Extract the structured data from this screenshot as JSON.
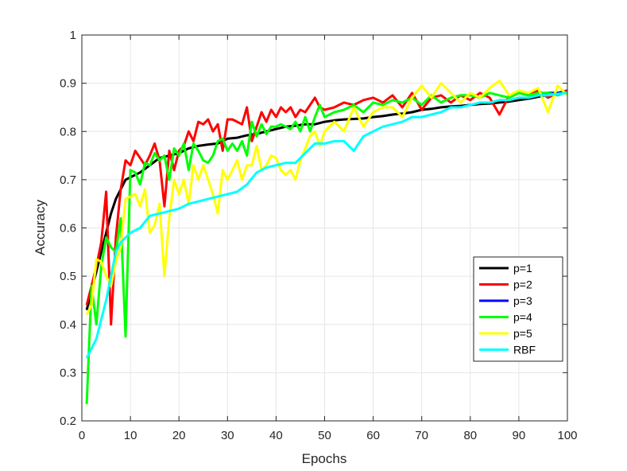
{
  "chart_data": {
    "type": "line",
    "xlabel": "Epochs",
    "ylabel": "Accuracy",
    "xlim": [
      0,
      100
    ],
    "ylim": [
      0.2,
      1.0
    ],
    "xticks": [
      0,
      10,
      20,
      30,
      40,
      50,
      60,
      70,
      80,
      90,
      100
    ],
    "yticks": [
      0.2,
      0.3,
      0.4,
      0.5,
      0.6,
      0.7,
      0.8,
      0.9,
      1.0
    ],
    "xtick_labels": [
      "0",
      "10",
      "20",
      "30",
      "40",
      "50",
      "60",
      "70",
      "80",
      "90",
      "100"
    ],
    "ytick_labels": [
      "0.2",
      "0.3",
      "0.4",
      "0.5",
      "0.6",
      "0.7",
      "0.8",
      "0.9",
      "1"
    ],
    "grid": true,
    "legend_position": "right",
    "series": [
      {
        "name": "p=1",
        "color": "#000000",
        "x": [
          1,
          2,
          3,
          4,
          5,
          6,
          7,
          8,
          9,
          10,
          12,
          14,
          16,
          18,
          20,
          22,
          24,
          26,
          28,
          30,
          32,
          34,
          36,
          38,
          40,
          42,
          44,
          46,
          48,
          50,
          52,
          54,
          56,
          58,
          60,
          62,
          64,
          66,
          68,
          70,
          72,
          74,
          76,
          78,
          80,
          82,
          84,
          86,
          88,
          90,
          92,
          94,
          96,
          98,
          100
        ],
        "y": [
          0.43,
          0.47,
          0.51,
          0.55,
          0.59,
          0.63,
          0.66,
          0.68,
          0.7,
          0.705,
          0.715,
          0.73,
          0.745,
          0.75,
          0.755,
          0.765,
          0.77,
          0.773,
          0.775,
          0.785,
          0.787,
          0.792,
          0.795,
          0.8,
          0.805,
          0.81,
          0.812,
          0.815,
          0.815,
          0.82,
          0.823,
          0.825,
          0.826,
          0.827,
          0.83,
          0.832,
          0.835,
          0.837,
          0.84,
          0.845,
          0.847,
          0.85,
          0.852,
          0.853,
          0.855,
          0.857,
          0.858,
          0.86,
          0.862,
          0.865,
          0.868,
          0.872,
          0.876,
          0.88,
          0.88
        ]
      },
      {
        "name": "p=2",
        "color": "#ff0000",
        "x": [
          1,
          2,
          3,
          4,
          5,
          6,
          7,
          8,
          9,
          10,
          11,
          12,
          13,
          14,
          15,
          16,
          17,
          18,
          19,
          20,
          21,
          22,
          23,
          24,
          25,
          26,
          27,
          28,
          29,
          30,
          31,
          32,
          33,
          34,
          35,
          36,
          37,
          38,
          39,
          40,
          41,
          42,
          43,
          44,
          45,
          46,
          47,
          48,
          49,
          50,
          52,
          54,
          56,
          58,
          60,
          62,
          64,
          66,
          68,
          70,
          72,
          74,
          76,
          78,
          80,
          82,
          84,
          86,
          88,
          90,
          92,
          94,
          96,
          98,
          100
        ],
        "y": [
          0.44,
          0.48,
          0.52,
          0.57,
          0.675,
          0.4,
          0.58,
          0.68,
          0.74,
          0.73,
          0.76,
          0.745,
          0.73,
          0.75,
          0.775,
          0.74,
          0.645,
          0.76,
          0.72,
          0.76,
          0.77,
          0.8,
          0.78,
          0.82,
          0.815,
          0.825,
          0.8,
          0.815,
          0.76,
          0.825,
          0.825,
          0.82,
          0.815,
          0.85,
          0.78,
          0.81,
          0.84,
          0.82,
          0.845,
          0.83,
          0.85,
          0.84,
          0.85,
          0.83,
          0.845,
          0.84,
          0.855,
          0.87,
          0.85,
          0.845,
          0.85,
          0.86,
          0.855,
          0.865,
          0.87,
          0.86,
          0.875,
          0.85,
          0.88,
          0.845,
          0.87,
          0.875,
          0.86,
          0.875,
          0.865,
          0.88,
          0.87,
          0.835,
          0.875,
          0.88,
          0.875,
          0.885,
          0.87,
          0.88,
          0.885
        ]
      },
      {
        "name": "p=3",
        "color": "#0000ff",
        "x": [
          94,
          96,
          98,
          100
        ],
        "y": [
          0.875,
          0.88,
          0.88,
          0.882
        ]
      },
      {
        "name": "p=4",
        "color": "#00ff00",
        "x": [
          1,
          2,
          3,
          4,
          5,
          6,
          7,
          8,
          9,
          10,
          11,
          12,
          13,
          14,
          15,
          16,
          17,
          18,
          19,
          20,
          21,
          22,
          23,
          24,
          25,
          26,
          27,
          28,
          29,
          30,
          31,
          32,
          33,
          34,
          35,
          36,
          37,
          38,
          39,
          40,
          41,
          42,
          43,
          44,
          45,
          46,
          47,
          48,
          49,
          50,
          52,
          54,
          56,
          58,
          60,
          62,
          64,
          66,
          68,
          70,
          72,
          74,
          76,
          78,
          80,
          82,
          84,
          86,
          88,
          90,
          92,
          94,
          96,
          98,
          100
        ],
        "y": [
          0.235,
          0.48,
          0.4,
          0.52,
          0.58,
          0.56,
          0.55,
          0.62,
          0.375,
          0.72,
          0.715,
          0.69,
          0.735,
          0.73,
          0.755,
          0.74,
          0.75,
          0.7,
          0.765,
          0.75,
          0.775,
          0.72,
          0.775,
          0.76,
          0.74,
          0.735,
          0.75,
          0.78,
          0.785,
          0.76,
          0.775,
          0.76,
          0.78,
          0.75,
          0.82,
          0.79,
          0.815,
          0.795,
          0.81,
          0.81,
          0.815,
          0.81,
          0.805,
          0.82,
          0.8,
          0.83,
          0.8,
          0.83,
          0.855,
          0.83,
          0.84,
          0.845,
          0.855,
          0.84,
          0.86,
          0.855,
          0.865,
          0.86,
          0.87,
          0.855,
          0.875,
          0.86,
          0.87,
          0.875,
          0.875,
          0.87,
          0.88,
          0.875,
          0.87,
          0.88,
          0.875,
          0.88,
          0.88,
          0.875,
          0.882
        ]
      },
      {
        "name": "p=5",
        "color": "#ffff00",
        "x": [
          1,
          2,
          3,
          4,
          5,
          6,
          7,
          8,
          9,
          10,
          11,
          12,
          13,
          14,
          15,
          16,
          17,
          18,
          19,
          20,
          21,
          22,
          23,
          24,
          25,
          26,
          27,
          28,
          29,
          30,
          31,
          32,
          33,
          34,
          35,
          36,
          37,
          38,
          39,
          40,
          41,
          42,
          43,
          44,
          45,
          46,
          47,
          48,
          49,
          50,
          52,
          54,
          56,
          58,
          60,
          62,
          64,
          66,
          68,
          70,
          72,
          74,
          76,
          78,
          80,
          82,
          84,
          86,
          88,
          90,
          92,
          94,
          96,
          98,
          100
        ],
        "y": [
          0.42,
          0.44,
          0.535,
          0.53,
          0.5,
          0.48,
          0.53,
          0.56,
          0.66,
          0.665,
          0.67,
          0.645,
          0.68,
          0.59,
          0.605,
          0.65,
          0.5,
          0.62,
          0.7,
          0.67,
          0.7,
          0.65,
          0.73,
          0.7,
          0.73,
          0.7,
          0.67,
          0.63,
          0.72,
          0.7,
          0.72,
          0.74,
          0.7,
          0.73,
          0.73,
          0.77,
          0.72,
          0.73,
          0.75,
          0.745,
          0.72,
          0.71,
          0.72,
          0.7,
          0.74,
          0.765,
          0.79,
          0.8,
          0.77,
          0.8,
          0.82,
          0.8,
          0.85,
          0.81,
          0.84,
          0.85,
          0.85,
          0.83,
          0.87,
          0.895,
          0.87,
          0.9,
          0.88,
          0.86,
          0.88,
          0.87,
          0.89,
          0.905,
          0.875,
          0.885,
          0.88,
          0.89,
          0.84,
          0.895,
          0.875
        ]
      },
      {
        "name": "RBF",
        "color": "#00ffff",
        "x": [
          1,
          2,
          3,
          4,
          5,
          6,
          7,
          8,
          9,
          10,
          12,
          14,
          16,
          18,
          20,
          22,
          24,
          26,
          28,
          30,
          32,
          34,
          36,
          38,
          40,
          42,
          44,
          46,
          48,
          50,
          52,
          54,
          56,
          58,
          60,
          62,
          64,
          66,
          68,
          70,
          72,
          74,
          76,
          78,
          80,
          82,
          84,
          86,
          88,
          90,
          92,
          94,
          96,
          98,
          100
        ],
        "y": [
          0.33,
          0.35,
          0.37,
          0.41,
          0.45,
          0.5,
          0.55,
          0.57,
          0.58,
          0.59,
          0.6,
          0.625,
          0.63,
          0.635,
          0.64,
          0.65,
          0.655,
          0.66,
          0.665,
          0.67,
          0.675,
          0.69,
          0.715,
          0.725,
          0.73,
          0.735,
          0.735,
          0.755,
          0.775,
          0.775,
          0.78,
          0.78,
          0.76,
          0.79,
          0.8,
          0.81,
          0.815,
          0.82,
          0.83,
          0.83,
          0.835,
          0.84,
          0.85,
          0.85,
          0.855,
          0.86,
          0.86,
          0.865,
          0.865,
          0.87,
          0.87,
          0.875,
          0.875,
          0.878,
          0.88
        ]
      }
    ]
  }
}
